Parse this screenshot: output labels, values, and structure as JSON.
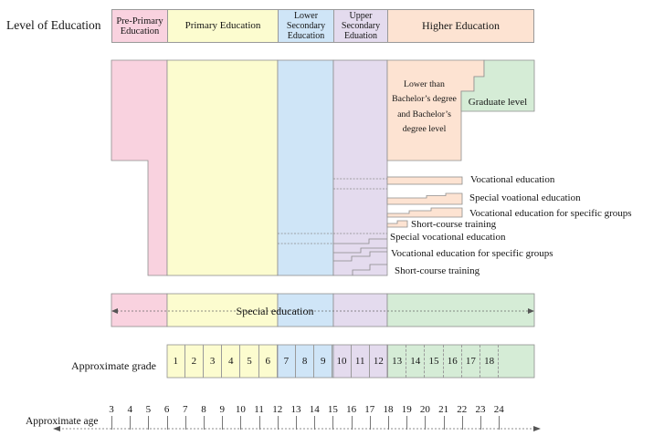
{
  "colors": {
    "pink": "#f9d2df",
    "yellow": "#fcfccf",
    "blue": "#cfe5f7",
    "lavender": "#e4dbee",
    "peach": "#fde3d2",
    "green": "#d5ecd6"
  },
  "header": {
    "label": "Level of Education",
    "pre_primary": "Pre-Primary\nEducation",
    "primary": "Primary Education",
    "lower_secondary": "Lower\nSecondary\nEducation",
    "upper_secondary": "Upper\nSecondary\nEduation",
    "higher": "Higher Education"
  },
  "higher_education": {
    "bachelor": "Lower than\nBachelor’s degree\nand Bachelor’s\ndegree level",
    "graduate": "Graduate level",
    "vocational": [
      "Vocational education",
      "Special voational education",
      "Vocational education for specific groups",
      "Short-course training"
    ]
  },
  "secondary_vocational": [
    "Special vocational education",
    "Vocational education for specific groups",
    "Short-course training"
  ],
  "special_education": "Special education",
  "grade_row": {
    "label": "Approximate grade",
    "primary": [
      "1",
      "2",
      "3",
      "4",
      "5",
      "6"
    ],
    "lower_secondary": [
      "7",
      "8",
      "9"
    ],
    "upper_secondary": [
      "10",
      "11",
      "12"
    ],
    "higher": [
      "13",
      "14",
      "15",
      "16",
      "17",
      "18"
    ]
  },
  "age_axis": {
    "label": "Approximate age",
    "ages": [
      "3",
      "4",
      "5",
      "6",
      "7",
      "8",
      "9",
      "10",
      "11",
      "12",
      "13",
      "14",
      "15",
      "16",
      "17",
      "18",
      "19",
      "20",
      "21",
      "22",
      "23",
      "24"
    ]
  }
}
